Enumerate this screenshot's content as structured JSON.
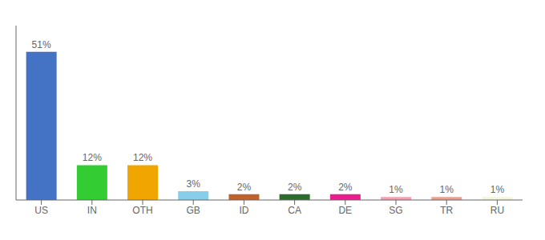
{
  "chart_data": {
    "type": "bar",
    "categories": [
      "US",
      "IN",
      "OTH",
      "GB",
      "ID",
      "CA",
      "DE",
      "SG",
      "TR",
      "RU"
    ],
    "values": [
      51,
      12,
      12,
      3,
      2,
      2,
      2,
      1,
      1,
      1
    ],
    "value_labels": [
      "51%",
      "12%",
      "12%",
      "3%",
      "2%",
      "2%",
      "2%",
      "1%",
      "1%",
      "1%"
    ],
    "colors": [
      "#4472c4",
      "#33cc33",
      "#f0a500",
      "#87ceeb",
      "#c0622e",
      "#2d6a2d",
      "#e91e8c",
      "#f4a0b0",
      "#e8a090",
      "#f5f5dc"
    ],
    "ylim": [
      0,
      60
    ],
    "data_labels": true,
    "tick_labels": "x",
    "grid": false
  }
}
